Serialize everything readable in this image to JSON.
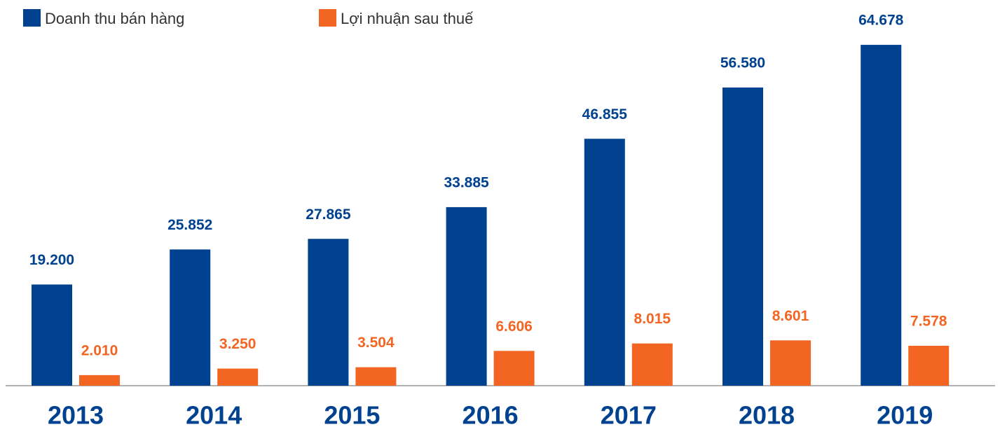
{
  "chart_data": {
    "type": "bar",
    "categories": [
      "2013",
      "2014",
      "2015",
      "2016",
      "2017",
      "2018",
      "2019"
    ],
    "series": [
      {
        "name": "Doanh thu bán hàng",
        "color": "#014290",
        "values": [
          19200,
          25852,
          27865,
          33885,
          46855,
          56580,
          64678
        ],
        "value_labels": [
          "19.200",
          "25.852",
          "27.865",
          "33.885",
          "46.855",
          "56.580",
          "64.678"
        ]
      },
      {
        "name": "Lợi nhuận sau thuế",
        "color": "#f26522",
        "values": [
          2010,
          3250,
          3504,
          6606,
          8015,
          8601,
          7578
        ],
        "value_labels": [
          "2.010",
          "3.250",
          "3.504",
          "6.606",
          "8.015",
          "8.601",
          "7.578"
        ]
      }
    ],
    "ylim": [
      0,
      70000
    ],
    "legend": "top-left"
  }
}
